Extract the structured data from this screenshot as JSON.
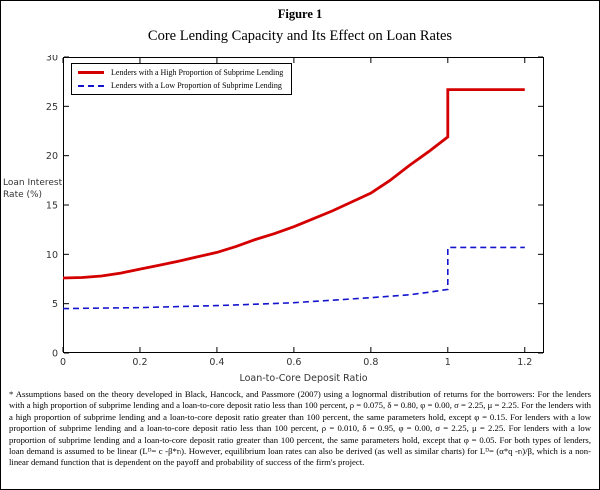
{
  "figure": {
    "label": "Figure 1",
    "title": "Core Lending Capacity and Its Effect on Loan Rates"
  },
  "chart_data": {
    "type": "line",
    "title": "",
    "xlabel": "Loan-to-Core Deposit Ratio",
    "ylabel": "Loan Interest Rate (%)",
    "ylabel_lines": [
      "Loan Interest",
      "Rate (%)"
    ],
    "xlim": [
      0,
      1.25
    ],
    "ylim": [
      0,
      30
    ],
    "xticks": [
      "0",
      "0.2",
      "0.4",
      "0.6",
      "0.8",
      "1",
      "1.2"
    ],
    "yticks": [
      "0",
      "5",
      "10",
      "15",
      "20",
      "25",
      "30"
    ],
    "grid": false,
    "legend_position": "top-left",
    "series": [
      {
        "name": "Lenders with a High Proportion of Subprime Lending",
        "color": "#d40000",
        "style": "solid",
        "width": 2.8,
        "points": [
          [
            0,
            7.6
          ],
          [
            0.05,
            7.65
          ],
          [
            0.1,
            7.8
          ],
          [
            0.15,
            8.1
          ],
          [
            0.2,
            8.5
          ],
          [
            0.25,
            8.9
          ],
          [
            0.3,
            9.3
          ],
          [
            0.35,
            9.75
          ],
          [
            0.4,
            10.2
          ],
          [
            0.45,
            10.8
          ],
          [
            0.5,
            11.5
          ],
          [
            0.55,
            12.1
          ],
          [
            0.6,
            12.8
          ],
          [
            0.65,
            13.6
          ],
          [
            0.7,
            14.4
          ],
          [
            0.75,
            15.3
          ],
          [
            0.8,
            16.2
          ],
          [
            0.85,
            17.5
          ],
          [
            0.9,
            19.0
          ],
          [
            0.95,
            20.4
          ],
          [
            1.0,
            21.9
          ],
          [
            1.0,
            26.7
          ],
          [
            1.2,
            26.7
          ]
        ]
      },
      {
        "name": "Lenders with a Low Proportion of Subprime Lending",
        "color": "#1414cc",
        "style": "dashed",
        "width": 1.6,
        "points": [
          [
            0,
            4.5
          ],
          [
            0.1,
            4.55
          ],
          [
            0.2,
            4.6
          ],
          [
            0.3,
            4.7
          ],
          [
            0.4,
            4.8
          ],
          [
            0.5,
            4.95
          ],
          [
            0.6,
            5.1
          ],
          [
            0.7,
            5.35
          ],
          [
            0.8,
            5.6
          ],
          [
            0.9,
            5.9
          ],
          [
            0.95,
            6.15
          ],
          [
            1.0,
            6.45
          ],
          [
            1.0,
            10.7
          ],
          [
            1.2,
            10.7
          ]
        ]
      }
    ]
  },
  "footnote": "* Assumptions based on the theory developed in Black, Hancock, and Passmore (2007) using a lognormal distribution of returns for the borrowers: For the lenders with a high proportion of subprime lending and a loan-to-core deposit ratio less than 100 percent, ρ = 0.075, δ = 0.80, φ = 0.00, σ = 2.25, μ = 2.25. For the lenders with a high proportion of subprime lending and a loan-to-core deposit ratio greater than 100 percent, the same parameters hold, except φ = 0.15. For lenders with a low proportion of subprime lending and a loan-to-core deposit ratio less than 100 percent, ρ = 0.010, δ = 0.95, φ = 0.00, σ = 2.25, μ = 2.25. For lenders with a low proportion of subprime lending and a loan-to-core deposit ratio greater than 100 percent, the same parameters hold, except that φ = 0.05. For both types of lenders, loan demand is assumed to be linear (Lᴰ= c -β*rₗ). However, equilibrium loan rates can also be derived (as well as similar charts) for Lᴰ= (α*q -rₗ)/β, which is a non-linear demand function that is dependent on the payoff and probability of success of the firm's project."
}
